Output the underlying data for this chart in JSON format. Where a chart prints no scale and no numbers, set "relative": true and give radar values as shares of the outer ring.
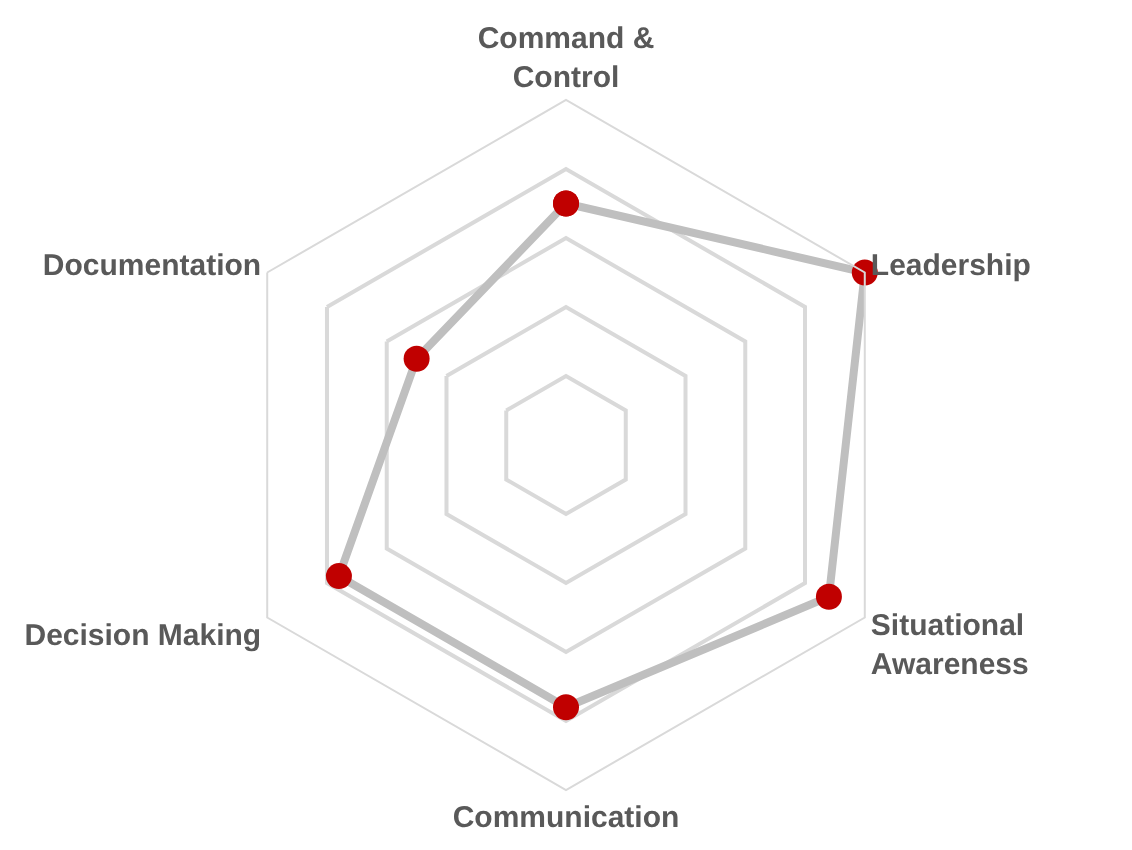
{
  "chart_data": {
    "type": "radar",
    "relative": true,
    "grid": true,
    "marker": "circle",
    "line_style": "solid",
    "legend": false,
    "categories": [
      "Command &\nControl",
      "Leadership",
      "Situational\nAwareness",
      "Communication",
      "Decision Making",
      "Documentation"
    ],
    "series": [
      {
        "color": "#bfbfbf",
        "colors": [
          "#c00000",
          "#c00000",
          "#c00000",
          "#c00000",
          "#c00000",
          "#c00000"
        ],
        "values": [
          0.7,
          1.0,
          0.88,
          0.76,
          0.76,
          0.5
        ]
      }
    ]
  }
}
